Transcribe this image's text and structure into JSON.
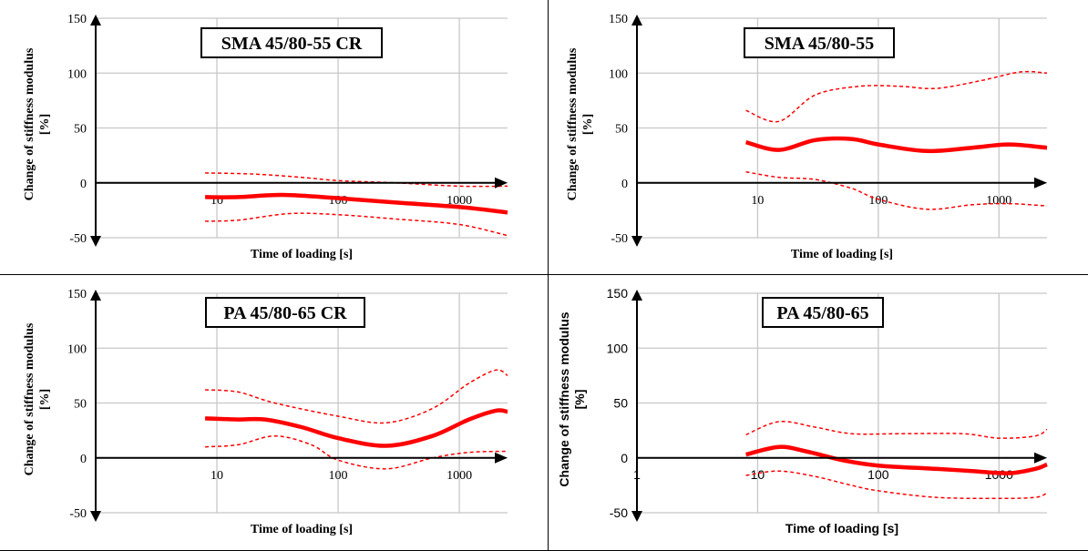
{
  "chart_data": [
    {
      "type": "line",
      "title": "SMA 45/80-55 CR",
      "xlabel": "Time of loading [s]",
      "ylabel": "Change of stiffness modulus [%]",
      "x_scale": "log",
      "xlim": [
        1,
        2500
      ],
      "ylim": [
        -50,
        150
      ],
      "yticks": [
        150,
        100,
        50,
        0,
        -50
      ],
      "xticks": [
        10,
        100,
        1000
      ],
      "grid": true,
      "series": [
        {
          "role": "mean",
          "x": [
            8,
            15,
            35,
            100,
            300,
            1000,
            2500
          ],
          "y": [
            -13,
            -13,
            -11,
            -14,
            -18,
            -22,
            -27
          ]
        },
        {
          "role": "upper-bound",
          "x": [
            8,
            20,
            50,
            100,
            300,
            1000,
            2500
          ],
          "y": [
            9,
            8,
            5,
            2,
            0,
            -3,
            -3
          ]
        },
        {
          "role": "lower-bound",
          "x": [
            8,
            15,
            40,
            100,
            300,
            1000,
            2500
          ],
          "y": [
            -35,
            -34,
            -28,
            -29,
            -33,
            -38,
            -48
          ]
        }
      ]
    },
    {
      "type": "line",
      "title": "SMA 45/80-55",
      "xlabel": "Time of loading [s]",
      "ylabel": "Change of stiffness modulus [%]",
      "x_scale": "log",
      "xlim": [
        1,
        2500
      ],
      "ylim": [
        -50,
        150
      ],
      "yticks": [
        150,
        100,
        50,
        0,
        -50
      ],
      "xticks": [
        10,
        100,
        1000
      ],
      "grid": true,
      "series": [
        {
          "role": "mean",
          "x": [
            8,
            15,
            30,
            60,
            100,
            250,
            600,
            1200,
            2500
          ],
          "y": [
            37,
            30,
            39,
            40,
            35,
            29,
            32,
            35,
            32
          ]
        },
        {
          "role": "upper-bound",
          "x": [
            8,
            15,
            30,
            70,
            150,
            300,
            700,
            1500,
            2500
          ],
          "y": [
            66,
            56,
            80,
            88,
            88,
            86,
            93,
            101,
            100
          ]
        },
        {
          "role": "lower-bound",
          "x": [
            8,
            15,
            30,
            60,
            100,
            250,
            600,
            1200,
            2500
          ],
          "y": [
            10,
            5,
            3,
            -5,
            -15,
            -24,
            -20,
            -19,
            -21
          ]
        }
      ]
    },
    {
      "type": "line",
      "title": "PA 45/80-65 CR",
      "xlabel": "Time of loading [s]",
      "ylabel": "Change of stiffness modulus [%]",
      "x_scale": "log",
      "xlim": [
        1,
        2500
      ],
      "ylim": [
        -50,
        150
      ],
      "yticks": [
        150,
        100,
        50,
        0,
        -50
      ],
      "xticks": [
        10,
        100,
        1000
      ],
      "grid": true,
      "series": [
        {
          "role": "mean",
          "x": [
            8,
            15,
            25,
            50,
            100,
            250,
            600,
            1200,
            2000,
            2500
          ],
          "y": [
            36,
            35,
            35,
            28,
            18,
            11,
            20,
            35,
            43,
            42
          ]
        },
        {
          "role": "upper-bound",
          "x": [
            8,
            15,
            30,
            100,
            250,
            600,
            1200,
            2000,
            2500
          ],
          "y": [
            62,
            60,
            50,
            38,
            32,
            45,
            68,
            80,
            75
          ]
        },
        {
          "role": "lower-bound",
          "x": [
            8,
            15,
            30,
            60,
            100,
            250,
            600,
            1200,
            2500
          ],
          "y": [
            10,
            12,
            20,
            12,
            -2,
            -10,
            0,
            5,
            6
          ]
        }
      ]
    },
    {
      "type": "line",
      "title": "PA 45/80-65",
      "xlabel": "Time of loading [s]",
      "ylabel": "Change of stiffness modulus [%]",
      "x_scale": "log",
      "xlim": [
        1,
        2500
      ],
      "ylim": [
        -50,
        150
      ],
      "yticks": [
        150,
        100,
        50,
        0,
        -50
      ],
      "xticks": [
        1,
        10,
        100,
        1000
      ],
      "grid": true,
      "series": [
        {
          "role": "mean",
          "x": [
            8,
            15,
            25,
            50,
            100,
            300,
            600,
            1200,
            2000,
            2500
          ],
          "y": [
            3,
            10,
            6,
            -2,
            -7,
            -10,
            -12,
            -14,
            -10,
            -6
          ]
        },
        {
          "role": "upper-bound",
          "x": [
            8,
            15,
            30,
            60,
            150,
            500,
            1000,
            2000,
            2500
          ],
          "y": [
            21,
            33,
            28,
            22,
            22,
            22,
            18,
            20,
            26
          ]
        },
        {
          "role": "lower-bound",
          "x": [
            8,
            15,
            30,
            60,
            100,
            300,
            1000,
            2000,
            2500
          ],
          "y": [
            -16,
            -12,
            -17,
            -25,
            -30,
            -36,
            -37,
            -36,
            -32
          ]
        }
      ]
    }
  ],
  "colors": {
    "series": "#ff0000",
    "grid": "#c8c8c8",
    "axis": "#000000"
  }
}
